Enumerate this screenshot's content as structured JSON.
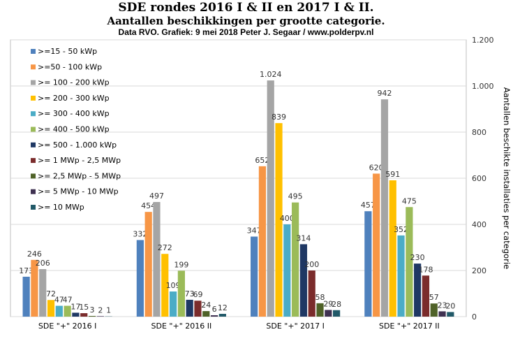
{
  "title": {
    "line1": "SDE rondes 2016 I & II en 2017 I & II.",
    "line2": "Aantallen beschikkingen  per grootte categorie.",
    "line3": "Data RVO. Grafiek: 9 mei 2018 Peter J. Segaar / www.polderpv.nl"
  },
  "chart_data": {
    "type": "bar",
    "categories": [
      "SDE \"+\" 2016 I",
      "SDE \"+\" 2016 II",
      "SDE \"+\" 2017 I",
      "SDE \"+\" 2017 II"
    ],
    "ylabel": "Aantallen beschikte installaties per categorie",
    "ylim": [
      0,
      1200
    ],
    "yticks": [
      0,
      200,
      400,
      600,
      800,
      1000,
      1200
    ],
    "ytick_labels": [
      "0",
      "200",
      "400",
      "600",
      "800",
      "1.000",
      "1.200"
    ],
    "y_axis_side": "right",
    "grid": true,
    "legend_position": "top-left",
    "series": [
      {
        "name": ">=15 - 50 kWp",
        "color": "#4F81BD",
        "values": [
          173,
          332,
          347,
          457
        ],
        "labels": [
          "173",
          "332",
          "347",
          "457"
        ]
      },
      {
        "name": ">=50 - 100 kWp",
        "color": "#F79646",
        "values": [
          246,
          454,
          652,
          620
        ],
        "labels": [
          "246",
          "454",
          "652",
          "620"
        ]
      },
      {
        "name": ">= 100 - 200 kWp",
        "color": "#A5A5A5",
        "values": [
          206,
          497,
          1024,
          942
        ],
        "labels": [
          "206",
          "497",
          "1.024",
          "942"
        ]
      },
      {
        "name": ">= 200 - 300 kWp",
        "color": "#FFC000",
        "values": [
          72,
          272,
          839,
          591
        ],
        "labels": [
          "72",
          "272",
          "839",
          "591"
        ]
      },
      {
        "name": ">= 300 - 400 kWp",
        "color": "#4BACC6",
        "values": [
          47,
          109,
          400,
          352
        ],
        "labels": [
          "47",
          "109",
          "400",
          "352"
        ]
      },
      {
        "name": ">= 400 - 500 kWp",
        "color": "#9BBB59",
        "values": [
          47,
          199,
          495,
          475
        ],
        "labels": [
          "47",
          "199",
          "495",
          "475"
        ]
      },
      {
        "name": ">= 500 - 1.000 kWp",
        "color": "#1F3864",
        "values": [
          17,
          73,
          314,
          230
        ],
        "labels": [
          "17",
          "73",
          "314",
          "230"
        ]
      },
      {
        "name": ">= 1 MWp - 2,5 MWp",
        "color": "#7B2C2C",
        "values": [
          15,
          69,
          200,
          178
        ],
        "labels": [
          "15",
          "69",
          "200",
          "178"
        ]
      },
      {
        "name": ">= 2,5 MWp - 5 MWp",
        "color": "#4F6228",
        "values": [
          3,
          24,
          58,
          57
        ],
        "labels": [
          "3",
          "24",
          "58",
          "57"
        ]
      },
      {
        "name": ">= 5 MWp - 10 MWp",
        "color": "#3F3151",
        "values": [
          2,
          6,
          29,
          23
        ],
        "labels": [
          "2",
          "6",
          "29",
          "23"
        ]
      },
      {
        "name": ">= 10 MWp",
        "color": "#215968",
        "values": [
          1,
          12,
          28,
          20
        ],
        "labels": [
          "1",
          "12",
          "28",
          "20"
        ]
      }
    ]
  }
}
